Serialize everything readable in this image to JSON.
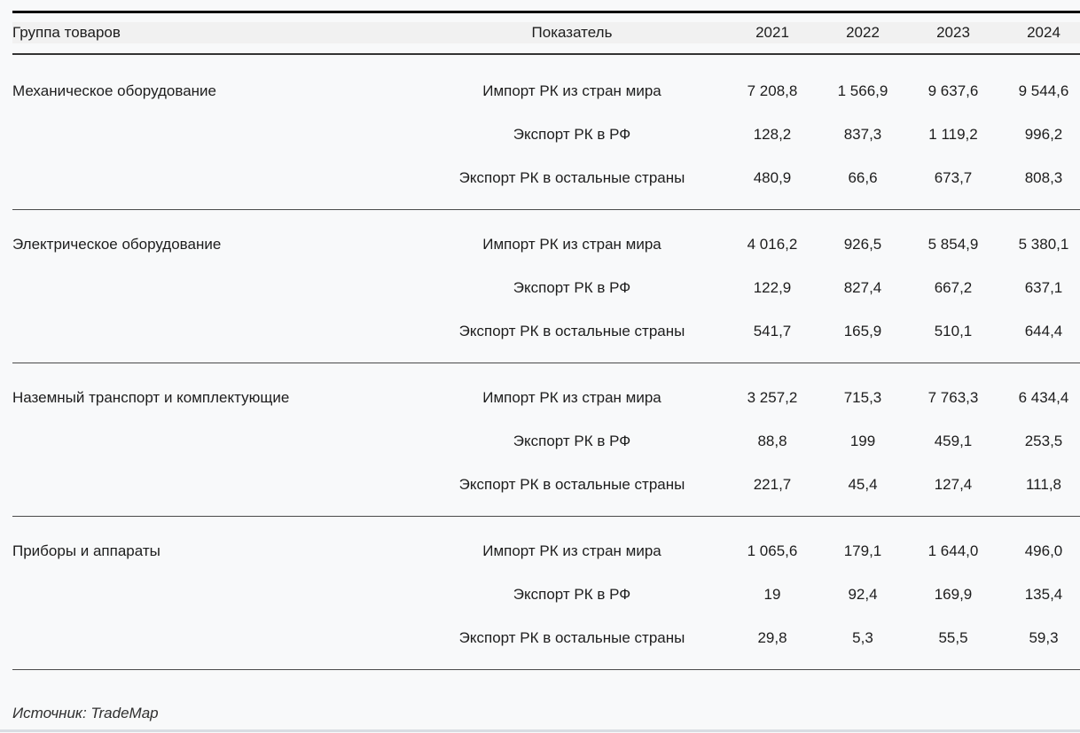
{
  "table": {
    "headers": {
      "group": "Группа товаров",
      "indicator": "Показатель",
      "years": [
        "2021",
        "2022",
        "2023",
        "2024"
      ]
    },
    "groups": [
      {
        "name": "Механическое оборудование",
        "rows": [
          {
            "indicator": "Импорт РК из стран мира",
            "values": [
              "7 208,8",
              "1 566,9",
              "9 637,6",
              "9 544,6"
            ]
          },
          {
            "indicator": "Экспорт РК в РФ",
            "values": [
              "128,2",
              "837,3",
              "1 119,2",
              "996,2"
            ]
          },
          {
            "indicator": "Экспорт РК в остальные страны",
            "values": [
              "480,9",
              "66,6",
              "673,7",
              "808,3"
            ]
          }
        ]
      },
      {
        "name": "Электрическое оборудование",
        "rows": [
          {
            "indicator": "Импорт РК из стран мира",
            "values": [
              "4 016,2",
              "926,5",
              "5 854,9",
              "5 380,1"
            ]
          },
          {
            "indicator": "Экспорт РК в РФ",
            "values": [
              "122,9",
              "827,4",
              "667,2",
              "637,1"
            ]
          },
          {
            "indicator": "Экспорт РК в остальные страны",
            "values": [
              "541,7",
              "165,9",
              "510,1",
              "644,4"
            ]
          }
        ]
      },
      {
        "name": "Наземный транспорт и комплектующие",
        "rows": [
          {
            "indicator": "Импорт РК из стран мира",
            "values": [
              "3 257,2",
              "715,3",
              "7 763,3",
              "6 434,4"
            ]
          },
          {
            "indicator": "Экспорт РК в РФ",
            "values": [
              "88,8",
              "199",
              "459,1",
              "253,5"
            ]
          },
          {
            "indicator": "Экспорт РК в остальные страны",
            "values": [
              "221,7",
              "45,4",
              "127,4",
              "111,8"
            ]
          }
        ]
      },
      {
        "name": "Приборы и аппараты",
        "rows": [
          {
            "indicator": "Импорт РК из стран мира",
            "values": [
              "1 065,6",
              "179,1",
              "1 644,0",
              "496,0"
            ]
          },
          {
            "indicator": "Экспорт РК в РФ",
            "values": [
              "19",
              "92,4",
              "169,9",
              "135,4"
            ]
          },
          {
            "indicator": "Экспорт РК в остальные страны",
            "values": [
              "29,8",
              "5,3",
              "55,5",
              "59,3"
            ]
          }
        ]
      }
    ],
    "source": "Источник: TradeMap"
  },
  "colors": {
    "header_band": "#f1f1f1",
    "top_border": "#0d0d0d",
    "separator": "#4a4a4a",
    "bottom_bar": "#d9dde3",
    "background": "#f8f9fa"
  },
  "chart_data": {
    "type": "table",
    "columns": [
      "Группа товаров",
      "Показатель",
      "2021",
      "2022",
      "2023",
      "2024"
    ],
    "rows": [
      [
        "Механическое оборудование",
        "Импорт РК из стран мира",
        7208.8,
        1566.9,
        9637.6,
        9544.6
      ],
      [
        "",
        "Экспорт РК в РФ",
        128.2,
        837.3,
        1119.2,
        996.2
      ],
      [
        "",
        "Экспорт РК в остальные страны",
        480.9,
        66.6,
        673.7,
        808.3
      ],
      [
        "Электрическое оборудование",
        "Импорт РК из стран мира",
        4016.2,
        926.5,
        5854.9,
        5380.1
      ],
      [
        "",
        "Экспорт РК в РФ",
        122.9,
        827.4,
        667.2,
        637.1
      ],
      [
        "",
        "Экспорт РК в остальные страны",
        541.7,
        165.9,
        510.1,
        644.4
      ],
      [
        "Наземный транспорт и комплектующие",
        "Импорт РК из стран мира",
        3257.2,
        715.3,
        7763.3,
        6434.4
      ],
      [
        "",
        "Экспорт РК в РФ",
        88.8,
        199,
        459.1,
        253.5
      ],
      [
        "",
        "Экспорт РК в остальные страны",
        221.7,
        45.4,
        127.4,
        111.8
      ],
      [
        "Приборы и аппараты",
        "Импорт РК из стран мира",
        1065.6,
        179.1,
        1644.0,
        496.0
      ],
      [
        "",
        "Экспорт РК в РФ",
        19,
        92.4,
        169.9,
        135.4
      ],
      [
        "",
        "Экспорт РК в остальные страны",
        29.8,
        5.3,
        55.5,
        59.3
      ]
    ],
    "source": "Источник: TradeMap",
    "layout": {
      "grid": "horizontal-separators-only",
      "header_background": true,
      "decimal_separator": ",",
      "thousands_separator": " "
    }
  }
}
